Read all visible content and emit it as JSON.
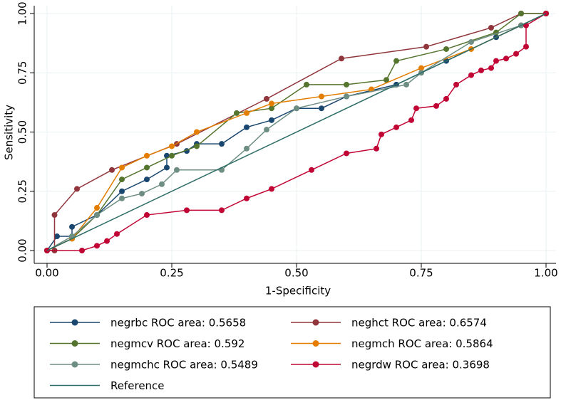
{
  "chart_data": {
    "type": "line",
    "xlabel": "1-Specificity",
    "ylabel": "Sensitivity",
    "xlim": [
      0,
      1
    ],
    "ylim": [
      0,
      1
    ],
    "xticks": [
      {
        "value": 0,
        "label": "0.00"
      },
      {
        "value": 0.25,
        "label": "0.25"
      },
      {
        "value": 0.5,
        "label": "0.50"
      },
      {
        "value": 0.75,
        "label": "0.75"
      },
      {
        "value": 1,
        "label": "1.00"
      }
    ],
    "yticks": [
      {
        "value": 0,
        "label": "0.00"
      },
      {
        "value": 0.25,
        "label": "0.25"
      },
      {
        "value": 0.5,
        "label": "0.50"
      },
      {
        "value": 0.75,
        "label": "0.75"
      },
      {
        "value": 1,
        "label": "1.00"
      }
    ],
    "grid": true,
    "legend": "bottom",
    "series": [
      {
        "name": "negrbc ROC area: 0.5658",
        "color": "#1a476f",
        "markers": true,
        "x": [
          0,
          0.02,
          0.05,
          0.05,
          0.1,
          0.15,
          0.2,
          0.24,
          0.24,
          0.28,
          0.3,
          0.35,
          0.4,
          0.45,
          0.5,
          0.55,
          0.6,
          0.7,
          0.8,
          0.9,
          0.95,
          1
        ],
        "values": [
          0,
          0.06,
          0.06,
          0.1,
          0.15,
          0.25,
          0.3,
          0.35,
          0.4,
          0.42,
          0.45,
          0.45,
          0.52,
          0.55,
          0.6,
          0.6,
          0.65,
          0.7,
          0.8,
          0.9,
          0.95,
          1
        ]
      },
      {
        "name": "neghct ROC area: 0.6574",
        "color": "#90353b",
        "markers": true,
        "x": [
          0,
          0.015,
          0.015,
          0.06,
          0.13,
          0.26,
          0.44,
          0.59,
          0.76,
          0.89,
          0.95,
          1
        ],
        "values": [
          0,
          0,
          0.15,
          0.26,
          0.34,
          0.45,
          0.64,
          0.81,
          0.86,
          0.94,
          1,
          1
        ]
      },
      {
        "name": "negmcv ROC area: 0.592",
        "color": "#55752f",
        "markers": true,
        "x": [
          0,
          0.05,
          0.1,
          0.15,
          0.2,
          0.25,
          0.3,
          0.38,
          0.45,
          0.52,
          0.6,
          0.68,
          0.7,
          0.8,
          0.9,
          0.95,
          1
        ],
        "values": [
          0,
          0.05,
          0.15,
          0.3,
          0.35,
          0.4,
          0.44,
          0.58,
          0.6,
          0.7,
          0.7,
          0.72,
          0.8,
          0.85,
          0.92,
          1,
          1
        ]
      },
      {
        "name": "negmch ROC area: 0.5864",
        "color": "#e37e00",
        "markers": true,
        "x": [
          0,
          0.05,
          0.1,
          0.15,
          0.2,
          0.25,
          0.3,
          0.4,
          0.45,
          0.55,
          0.65,
          0.75,
          0.85,
          0.95,
          1
        ],
        "values": [
          0,
          0.05,
          0.18,
          0.35,
          0.4,
          0.44,
          0.5,
          0.58,
          0.62,
          0.65,
          0.68,
          0.77,
          0.85,
          0.95,
          1
        ]
      },
      {
        "name": "negmchc ROC area: 0.5489",
        "color": "#6e8e84",
        "markers": true,
        "x": [
          0,
          0.05,
          0.1,
          0.15,
          0.19,
          0.23,
          0.26,
          0.35,
          0.4,
          0.44,
          0.5,
          0.6,
          0.72,
          0.75,
          0.85,
          0.95,
          1
        ],
        "values": [
          0,
          0.06,
          0.15,
          0.22,
          0.24,
          0.28,
          0.34,
          0.34,
          0.43,
          0.51,
          0.6,
          0.65,
          0.7,
          0.75,
          0.88,
          0.95,
          1
        ]
      },
      {
        "name": "negrdw ROC area: 0.3698",
        "color": "#c10534",
        "markers": true,
        "x": [
          0,
          0.07,
          0.1,
          0.12,
          0.14,
          0.2,
          0.28,
          0.35,
          0.4,
          0.45,
          0.53,
          0.6,
          0.66,
          0.67,
          0.7,
          0.73,
          0.74,
          0.78,
          0.8,
          0.82,
          0.85,
          0.87,
          0.89,
          0.9,
          0.92,
          0.94,
          0.96,
          0.96,
          1
        ],
        "values": [
          0,
          0,
          0.02,
          0.04,
          0.07,
          0.15,
          0.17,
          0.17,
          0.22,
          0.26,
          0.34,
          0.41,
          0.43,
          0.49,
          0.52,
          0.55,
          0.6,
          0.61,
          0.64,
          0.7,
          0.74,
          0.76,
          0.77,
          0.8,
          0.81,
          0.83,
          0.86,
          0.95,
          1
        ]
      },
      {
        "name": "Reference",
        "color": "#2d6d66",
        "markers": false,
        "x": [
          0,
          1
        ],
        "values": [
          0,
          1
        ]
      }
    ]
  }
}
